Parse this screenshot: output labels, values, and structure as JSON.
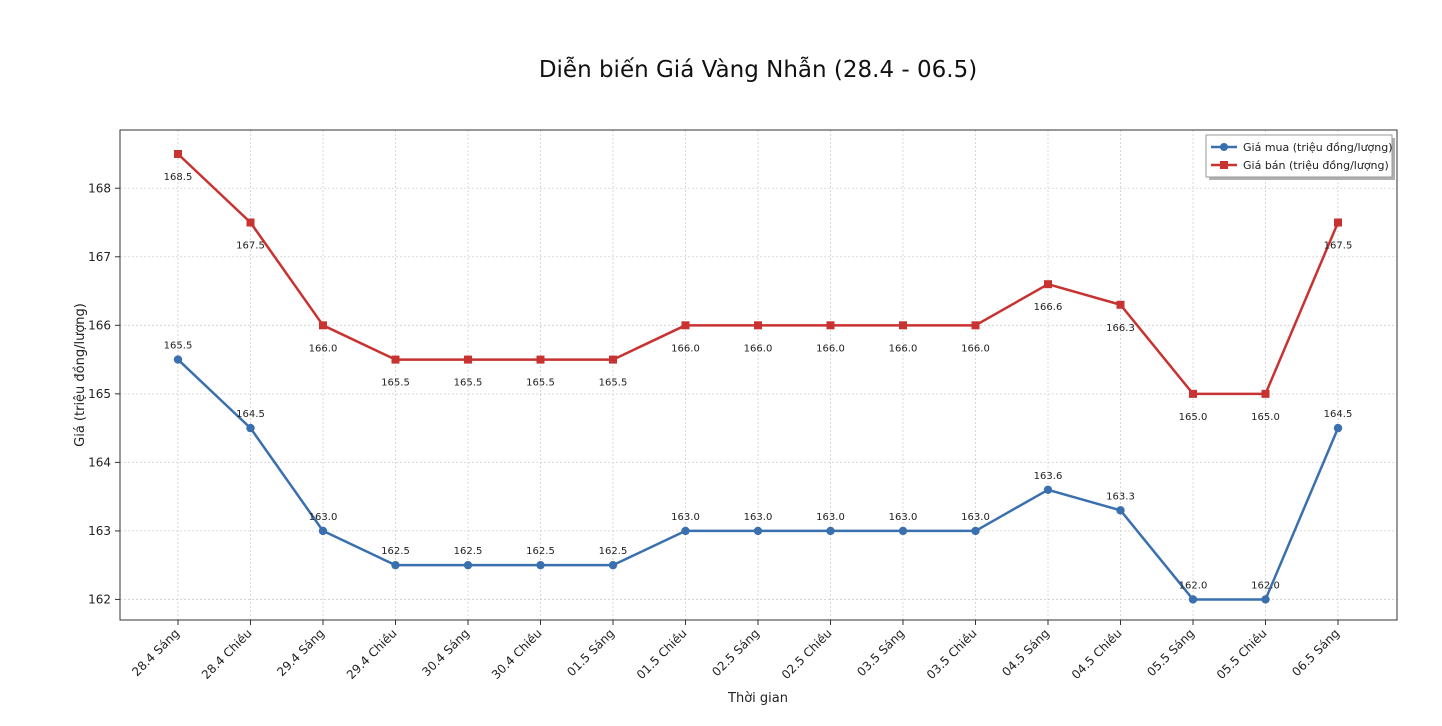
{
  "chart_data": {
    "type": "line",
    "title": "Diễn biến Giá Vàng Nhẫn (28.4 - 06.5)",
    "xlabel": "Thời gian",
    "ylabel": "Giá (triệu đồng/lượng)",
    "categories": [
      "28.4 Sáng",
      "28.4 Chiều",
      "29.4 Sáng",
      "29.4 Chiều",
      "30.4 Sáng",
      "30.4 Chiều",
      "01.5 Sáng",
      "01.5 Chiều",
      "02.5 Sáng",
      "02.5 Chiều",
      "03.5 Sáng",
      "03.5 Chiều",
      "04.5 Sáng",
      "04.5 Chiều",
      "05.5 Sáng",
      "05.5 Chiều",
      "06.5 Sáng"
    ],
    "yticks": [
      162,
      163,
      164,
      165,
      166,
      167,
      168
    ],
    "ylim": [
      161.7,
      168.85
    ],
    "grid": true,
    "legend_position": "top-right",
    "series": [
      {
        "name": "Giá mua (triệu đồng/lượng)",
        "color": "#3a70ad",
        "marker": "circle",
        "label_position": "above",
        "values": [
          165.5,
          164.5,
          163.0,
          162.5,
          162.5,
          162.5,
          162.5,
          163.0,
          163.0,
          163.0,
          163.0,
          163.0,
          163.6,
          163.3,
          162.0,
          162.0,
          164.5
        ],
        "labels": [
          "165.5",
          "164.5",
          "163.0",
          "162.5",
          "162.5",
          "162.5",
          "162.5",
          "163.0",
          "163.0",
          "163.0",
          "163.0",
          "163.0",
          "163.6",
          "163.3",
          "162.0",
          "162.0",
          "164.5"
        ]
      },
      {
        "name": "Giá bán (triệu đồng/lượng)",
        "color": "#c83230",
        "marker": "square",
        "label_position": "below",
        "values": [
          168.5,
          167.5,
          166.0,
          165.5,
          165.5,
          165.5,
          165.5,
          166.0,
          166.0,
          166.0,
          166.0,
          166.0,
          166.6,
          166.3,
          165.0,
          165.0,
          167.5
        ],
        "labels": [
          "168.5",
          "167.5",
          "166.0",
          "165.5",
          "165.5",
          "165.5",
          "165.5",
          "166.0",
          "166.0",
          "166.0",
          "166.0",
          "166.0",
          "166.6",
          "166.3",
          "165.0",
          "165.0",
          "167.5"
        ]
      }
    ]
  }
}
